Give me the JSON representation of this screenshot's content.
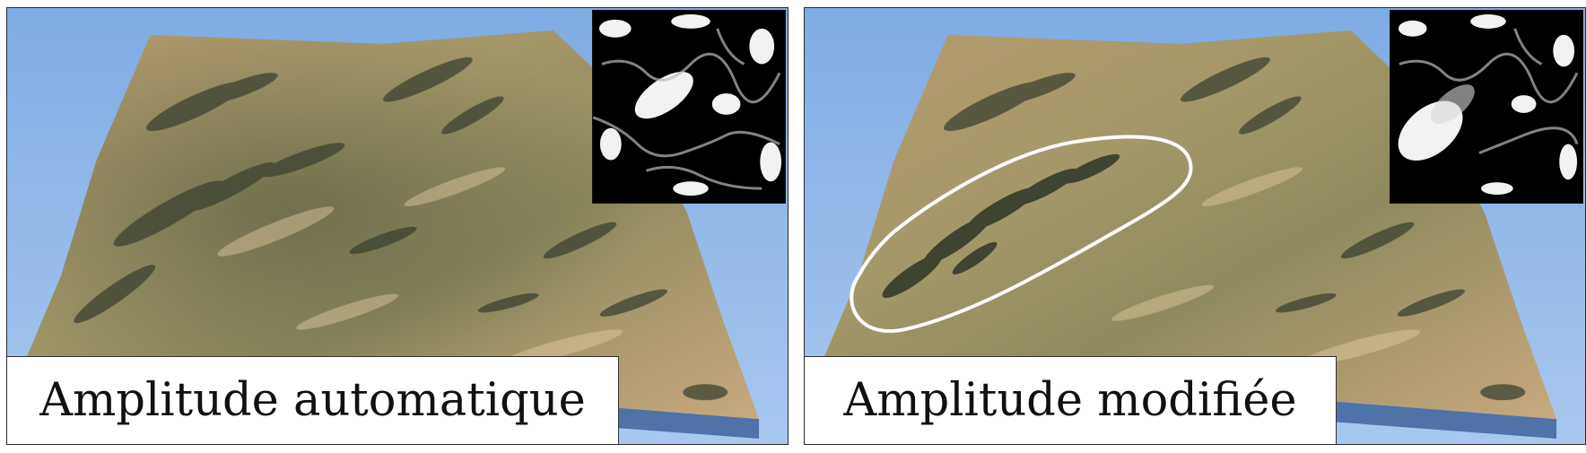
{
  "panels": [
    {
      "caption": "Amplitude automatique",
      "inset_image": "river-network-map",
      "region_outline": false
    },
    {
      "caption": "Amplitude modifiée",
      "inset_image": "river-network-map-modified",
      "region_outline": true
    }
  ],
  "colors": {
    "sky": "#8db6e8",
    "terrain_light": "#c9a97a",
    "terrain_mid": "#8c8a5a",
    "terrain_dark": "#3c4634",
    "block_side": "#5a7fb5",
    "outline": "#ffffff"
  }
}
